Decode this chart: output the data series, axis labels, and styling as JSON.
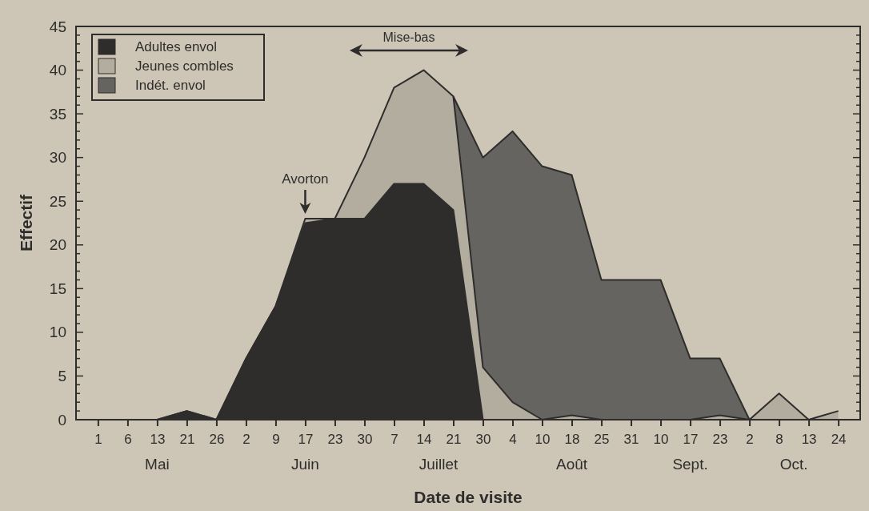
{
  "chart_data": {
    "type": "area",
    "stacked": true,
    "xlabel": "Date de visite",
    "ylabel": "Effectif",
    "categories": [
      "1",
      "6",
      "13",
      "21",
      "26",
      "2",
      "9",
      "17",
      "23",
      "30",
      "7",
      "14",
      "21",
      "30",
      "4",
      "10",
      "18",
      "25",
      "31",
      "10",
      "17",
      "23",
      "2",
      "8",
      "13",
      "24"
    ],
    "series": [
      {
        "name": "Adultes envol",
        "color": "#2e2d2b",
        "values": [
          0,
          0,
          0,
          1,
          0,
          7,
          13,
          22.5,
          23,
          23,
          27,
          27,
          24,
          0,
          0,
          0,
          0,
          0,
          0,
          0,
          0,
          0,
          0,
          0,
          0,
          0
        ]
      },
      {
        "name": "Jeunes combles",
        "color": "#b3ada0",
        "values": [
          0,
          0,
          0,
          0,
          0,
          0,
          0,
          0.5,
          0,
          7,
          11,
          13,
          13,
          6,
          2,
          0,
          0.5,
          0,
          0,
          0,
          0,
          0.5,
          0,
          3,
          0,
          1
        ]
      },
      {
        "name": "Indét. envol",
        "color": "#666461",
        "values": [
          null,
          null,
          null,
          null,
          null,
          null,
          null,
          null,
          null,
          null,
          null,
          null,
          0,
          24,
          31,
          29,
          27.5,
          16,
          16,
          16,
          7,
          6.5,
          0,
          null,
          null,
          null
        ]
      }
    ],
    "ylim": [
      0,
      45
    ],
    "yticks": [
      0,
      {
        "value": 1,
        "label": null
      },
      {
        "value": 2,
        "label": null
      },
      {
        "value": 3,
        "label": null
      },
      {
        "value": 4,
        "label": null
      },
      5,
      {
        "value": 6,
        "label": null
      },
      {
        "value": 7,
        "label": null
      },
      {
        "value": 8,
        "label": null
      },
      {
        "value": 9,
        "label": null
      },
      10,
      {
        "value": 11,
        "label": null
      },
      {
        "value": 12,
        "label": null
      },
      {
        "value": 13,
        "label": null
      },
      {
        "value": 14,
        "label": null
      },
      15,
      {
        "value": 16,
        "label": null
      },
      {
        "value": 17,
        "label": null
      },
      {
        "value": 18,
        "label": null
      },
      {
        "value": 19,
        "label": null
      },
      20,
      {
        "value": 21,
        "label": null
      },
      {
        "value": 22,
        "label": null
      },
      {
        "value": 23,
        "label": null
      },
      {
        "value": 24,
        "label": null
      },
      25,
      {
        "value": 26,
        "label": null
      },
      {
        "value": 27,
        "label": null
      },
      {
        "value": 28,
        "label": null
      },
      {
        "value": 29,
        "label": null
      },
      30,
      {
        "value": 31,
        "label": null
      },
      {
        "value": 32,
        "label": null
      },
      {
        "value": 33,
        "label": null
      },
      {
        "value": 34,
        "label": null
      },
      35,
      {
        "value": 36,
        "label": null
      },
      {
        "value": 37,
        "label": null
      },
      {
        "value": 38,
        "label": null
      },
      {
        "value": 39,
        "label": null
      },
      40,
      {
        "value": 41,
        "label": null
      },
      {
        "value": 42,
        "label": null
      },
      {
        "value": 43,
        "label": null
      },
      {
        "value": 44,
        "label": null
      },
      45
    ],
    "grid": false,
    "legend": "top left",
    "marker": "none",
    "annotations": [
      "Mai",
      "Juin",
      "Juillet",
      "Août",
      "Sept.",
      "Oct.",
      "Mise-bas",
      {
        "text": "Avorton",
        "x": "17",
        "y": 23
      }
    ]
  }
}
